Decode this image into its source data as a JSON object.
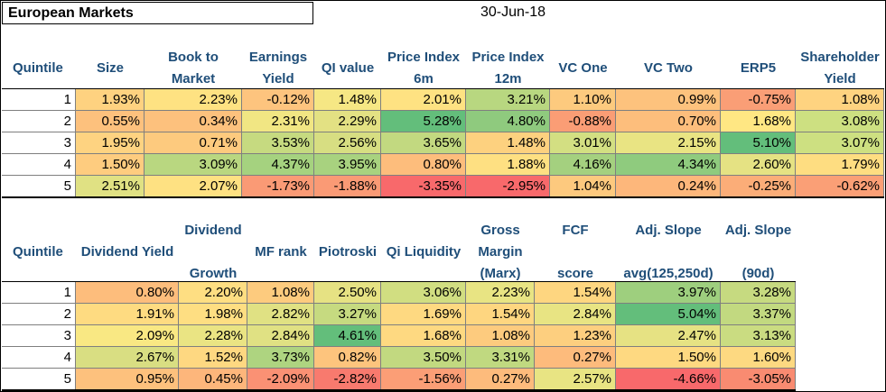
{
  "title": "European Markets",
  "date": "30-Jun-18",
  "table1": {
    "quintile_label": "Quintile",
    "headers": [
      [
        "Size"
      ],
      [
        "Book to",
        "Market"
      ],
      [
        "Earnings",
        "Yield"
      ],
      [
        "QI value"
      ],
      [
        "Price Index",
        "6m"
      ],
      [
        "Price Index",
        "12m"
      ],
      [
        "VC One"
      ],
      [
        "VC Two"
      ],
      [
        "ERP5"
      ],
      [
        "Shareholder",
        "Yield"
      ]
    ],
    "rows": [
      {
        "q": "1",
        "values": [
          "1.93%",
          "2.23%",
          "-0.12%",
          "1.48%",
          "2.01%",
          "3.21%",
          "1.10%",
          "0.99%",
          "-0.75%",
          "1.08%"
        ],
        "colors": [
          "#fed280",
          "#fee282",
          "#fdc47e",
          "#f6e784",
          "#fee282",
          "#b8d780",
          "#fdca7e",
          "#fdc27d",
          "#fa9e76",
          "#fed380"
        ]
      },
      {
        "q": "2",
        "values": [
          "0.55%",
          "0.34%",
          "2.31%",
          "2.29%",
          "5.28%",
          "4.80%",
          "-0.88%",
          "0.70%",
          "1.68%",
          "3.08%"
        ],
        "colors": [
          "#fdc17d",
          "#fdc17d",
          "#f1e683",
          "#e3e183",
          "#63be7b",
          "#8fca7e",
          "#fa9d75",
          "#fdbe7c",
          "#ffe783",
          "#cde081"
        ]
      },
      {
        "q": "3",
        "values": [
          "1.95%",
          "0.71%",
          "3.53%",
          "2.56%",
          "3.65%",
          "1.48%",
          "3.01%",
          "2.15%",
          "5.10%",
          "3.07%"
        ],
        "colors": [
          "#fed381",
          "#fdca7e",
          "#c6da80",
          "#d7de82",
          "#c2d980",
          "#fdd17f",
          "#d3df82",
          "#e9e483",
          "#63be7b",
          "#cde081"
        ]
      },
      {
        "q": "4",
        "values": [
          "1.50%",
          "3.09%",
          "4.37%",
          "3.95%",
          "0.80%",
          "1.88%",
          "4.16%",
          "4.34%",
          "2.60%",
          "1.79%"
        ],
        "colors": [
          "#fecc7f",
          "#b9d780",
          "#a5d27f",
          "#a8d27f",
          "#fdbd7c",
          "#fee082",
          "#a4d07f",
          "#8fcb7e",
          "#e5e283",
          "#fedd81"
        ]
      },
      {
        "q": "5",
        "values": [
          "2.51%",
          "2.07%",
          "-1.73%",
          "-1.88%",
          "-3.35%",
          "-2.95%",
          "1.04%",
          "0.24%",
          "-0.25%",
          "-0.62%"
        ],
        "colors": [
          "#e0e183",
          "#fee182",
          "#fa9a75",
          "#fa9a75",
          "#f8696b",
          "#f8696b",
          "#fdc97e",
          "#fdb77b",
          "#fbad78",
          "#fa9f76"
        ]
      }
    ]
  },
  "table2": {
    "quintile_label": "Quintile",
    "headers": [
      [
        "Dividend Yield"
      ],
      [
        "Dividend",
        "Growth"
      ],
      [
        "MF rank"
      ],
      [
        "Piotroski"
      ],
      [
        "Qi Liquidity"
      ],
      [
        "Gross",
        "Margin",
        "(Marx)"
      ],
      [
        "FCF",
        "score"
      ],
      [
        "Adj. Slope",
        "avg(125,250d)"
      ],
      [
        "Adj. Slope",
        "(90d)"
      ]
    ],
    "rows": [
      {
        "q": "1",
        "values": [
          "0.80%",
          "2.20%",
          "1.08%",
          "2.50%",
          "3.06%",
          "2.23%",
          "1.54%",
          "3.97%",
          "3.28%"
        ],
        "colors": [
          "#fdbd7c",
          "#fede82",
          "#fdcb7e",
          "#e6e283",
          "#d1de81",
          "#e8e483",
          "#fed680",
          "#9ecf7e",
          "#c6da80"
        ]
      },
      {
        "q": "2",
        "values": [
          "1.91%",
          "1.98%",
          "2.82%",
          "3.27%",
          "1.69%",
          "1.54%",
          "2.84%",
          "5.04%",
          "3.37%"
        ],
        "colors": [
          "#fedb81",
          "#fede82",
          "#e0e183",
          "#c6da80",
          "#fed981",
          "#fed680",
          "#e8e483",
          "#63be7b",
          "#c2d980"
        ]
      },
      {
        "q": "3",
        "values": [
          "2.09%",
          "2.28%",
          "2.84%",
          "4.61%",
          "1.68%",
          "1.08%",
          "1.23%",
          "2.47%",
          "3.13%"
        ],
        "colors": [
          "#f9e883",
          "#eae483",
          "#e0e183",
          "#63be7b",
          "#fed981",
          "#fdcb7e",
          "#fdcf7f",
          "#e6e283",
          "#cadc81"
        ]
      },
      {
        "q": "4",
        "values": [
          "2.67%",
          "1.52%",
          "3.73%",
          "0.82%",
          "3.50%",
          "3.31%",
          "0.27%",
          "1.50%",
          "1.60%"
        ],
        "colors": [
          "#d9de82",
          "#fed881",
          "#aed480",
          "#fdc47d",
          "#c2d980",
          "#c0d980",
          "#fdbb7c",
          "#fed981",
          "#fdd981"
        ]
      },
      {
        "q": "5",
        "values": [
          "0.95%",
          "0.45%",
          "-2.09%",
          "-2.82%",
          "-1.56%",
          "0.27%",
          "2.57%",
          "-4.66%",
          "-3.05%"
        ],
        "colors": [
          "#fdc17d",
          "#fdb67b",
          "#fa9174",
          "#f87a6e",
          "#fb9e76",
          "#fdbb7c",
          "#e8e483",
          "#f8696b",
          "#f98b71"
        ]
      }
    ]
  }
}
